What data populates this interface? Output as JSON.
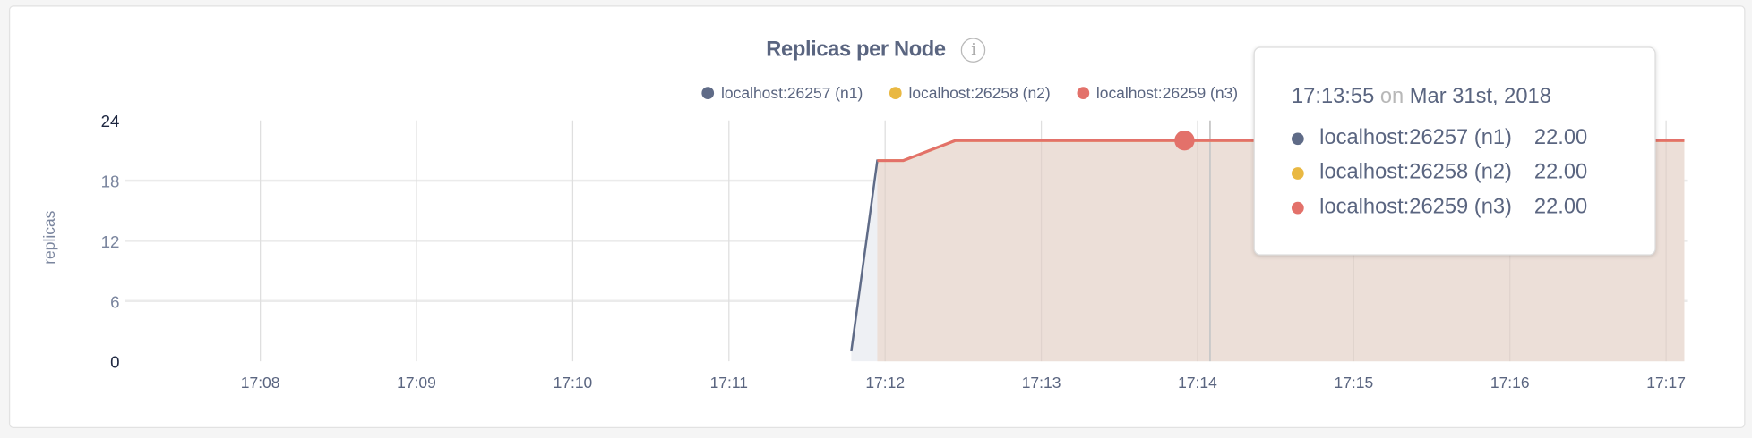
{
  "chart_data": {
    "type": "line",
    "title": "Replicas per Node",
    "ylabel": "replicas",
    "xlabel": "",
    "ylim": [
      0,
      24
    ],
    "yticks": [
      "0",
      "6",
      "12",
      "18",
      "24"
    ],
    "xticks": [
      "17:08",
      "17:09",
      "17:10",
      "17:11",
      "17:12",
      "17:13",
      "17:14",
      "17:15",
      "17:16",
      "17:17"
    ],
    "grid": true,
    "legend_placement": "top-right",
    "series": [
      {
        "name": "localhost:26257 (n1)",
        "color": "#5f6b87",
        "points": [
          [
            "17:11:47",
            1
          ],
          [
            "17:11:57",
            20
          ],
          [
            "17:12:07",
            20
          ],
          [
            "17:12:27",
            22
          ],
          [
            "17:17:07",
            22
          ]
        ]
      },
      {
        "name": "localhost:26258 (n2)",
        "color": "#e9b842",
        "points": [
          [
            "17:11:57",
            20
          ],
          [
            "17:12:07",
            20
          ],
          [
            "17:12:27",
            22
          ],
          [
            "17:17:07",
            22
          ]
        ]
      },
      {
        "name": "localhost:26259 (n3)",
        "color": "#e3716a",
        "points": [
          [
            "17:11:57",
            20
          ],
          [
            "17:12:07",
            20
          ],
          [
            "17:12:27",
            22
          ],
          [
            "17:17:07",
            22
          ]
        ]
      }
    ],
    "hover": {
      "time": "17:13:55",
      "value": 22
    }
  },
  "tooltip": {
    "time": "17:13:55",
    "on": "on",
    "date": "Mar 31st, 2018",
    "rows": [
      {
        "label": "localhost:26257 (n1)",
        "value": "22.00",
        "color": "#5f6b87"
      },
      {
        "label": "localhost:26258 (n2)",
        "value": "22.00",
        "color": "#e9b842"
      },
      {
        "label": "localhost:26259 (n3)",
        "value": "22.00",
        "color": "#e3716a"
      }
    ]
  },
  "icons": {
    "info": "info-icon"
  },
  "info_glyph": "i"
}
